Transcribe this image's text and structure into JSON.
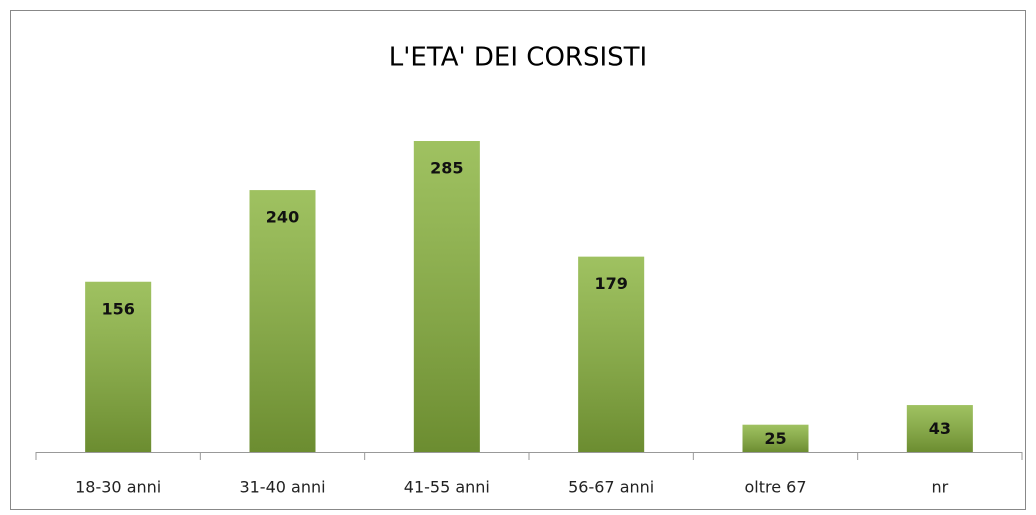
{
  "chart_data": {
    "type": "bar",
    "title": "L'ETA' DEI CORSISTI",
    "categories": [
      "18-30 anni",
      "31-40 anni",
      "41-55 anni",
      "56-67 anni",
      "oltre 67",
      "nr"
    ],
    "values": [
      156,
      240,
      285,
      179,
      25,
      43
    ],
    "color": "#8ab43e"
  }
}
